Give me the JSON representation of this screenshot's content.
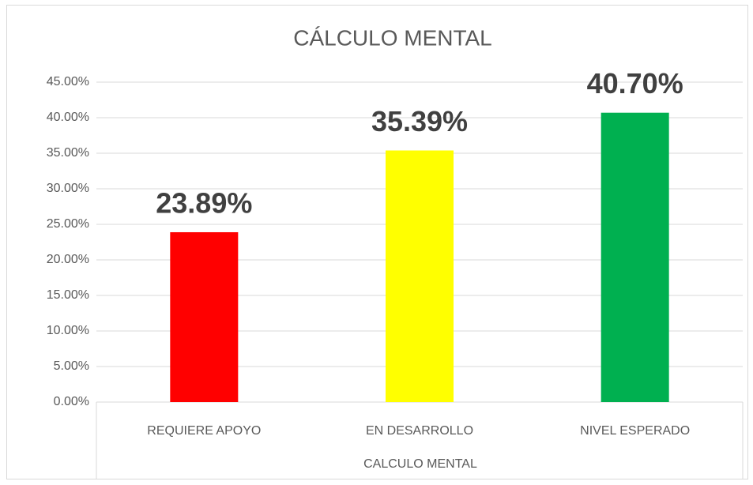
{
  "chart_data": {
    "type": "bar",
    "title": "CÁLCULO MENTAL",
    "xlabel": "CALCULO MENTAL",
    "categories": [
      "REQUIERE APOYO",
      "EN DESARROLLO",
      "NIVEL ESPERADO"
    ],
    "values": [
      23.89,
      35.39,
      40.7
    ],
    "value_labels": [
      "23.89%",
      "35.39%",
      "40.70%"
    ],
    "colors": [
      "#ff0000",
      "#ffff00",
      "#00b050"
    ],
    "ylim": [
      0,
      45
    ],
    "yticks": [
      {
        "value": 0,
        "label": "0.00%"
      },
      {
        "value": 5,
        "label": "5.00%"
      },
      {
        "value": 10,
        "label": "10.00%"
      },
      {
        "value": 15,
        "label": "15.00%"
      },
      {
        "value": 20,
        "label": "20.00%"
      },
      {
        "value": 25,
        "label": "25.00%"
      },
      {
        "value": 30,
        "label": "30.00%"
      },
      {
        "value": 35,
        "label": "35.00%"
      },
      {
        "value": 40,
        "label": "40.00%"
      },
      {
        "value": 45,
        "label": "45.00%"
      }
    ],
    "grid": true
  }
}
